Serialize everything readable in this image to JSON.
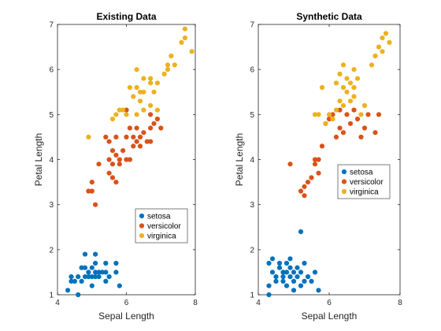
{
  "figure": {
    "background": "#ffffff"
  },
  "chart_data": [
    {
      "type": "scatter",
      "title": "Existing Data",
      "xlabel": "Sepal Length",
      "ylabel": "Petal Length",
      "xlim": [
        4,
        8
      ],
      "ylim": [
        1,
        7
      ],
      "xticks": [
        "4",
        "6",
        "8"
      ],
      "yticks": [
        "1",
        "2",
        "3",
        "4",
        "5",
        "6",
        "7"
      ],
      "grid": false,
      "legend_position": "lower-right",
      "series": [
        {
          "name": "setosa",
          "color": "#0072BD",
          "points": [
            [
              4.4,
              1.4
            ],
            [
              4.3,
              1.1
            ],
            [
              4.4,
              1.3
            ],
            [
              4.5,
              1.3
            ],
            [
              4.6,
              1.4
            ],
            [
              4.6,
              1.0
            ],
            [
              4.7,
              1.3
            ],
            [
              4.7,
              1.6
            ],
            [
              4.8,
              1.4
            ],
            [
              4.8,
              1.6
            ],
            [
              4.8,
              1.9
            ],
            [
              4.9,
              1.4
            ],
            [
              4.9,
              1.5
            ],
            [
              5.0,
              1.2
            ],
            [
              5.0,
              1.4
            ],
            [
              5.0,
              1.6
            ],
            [
              5.1,
              1.4
            ],
            [
              5.1,
              1.5
            ],
            [
              5.1,
              1.7
            ],
            [
              5.1,
              1.9
            ],
            [
              5.2,
              1.5
            ],
            [
              5.2,
              1.4
            ],
            [
              5.3,
              1.5
            ],
            [
              5.4,
              1.3
            ],
            [
              5.4,
              1.5
            ],
            [
              5.4,
              1.7
            ],
            [
              5.5,
              1.4
            ],
            [
              5.7,
              1.5
            ],
            [
              5.7,
              1.7
            ],
            [
              5.8,
              1.2
            ]
          ]
        },
        {
          "name": "versicolor",
          "color": "#D95319",
          "points": [
            [
              4.9,
              3.3
            ],
            [
              5.0,
              3.3
            ],
            [
              5.0,
              3.5
            ],
            [
              5.1,
              3.0
            ],
            [
              5.2,
              3.9
            ],
            [
              5.4,
              4.5
            ],
            [
              5.5,
              3.7
            ],
            [
              5.5,
              4.0
            ],
            [
              5.5,
              4.4
            ],
            [
              5.6,
              3.6
            ],
            [
              5.6,
              3.9
            ],
            [
              5.6,
              4.2
            ],
            [
              5.7,
              3.5
            ],
            [
              5.7,
              4.1
            ],
            [
              5.7,
              4.5
            ],
            [
              5.8,
              3.9
            ],
            [
              5.8,
              4.0
            ],
            [
              5.9,
              4.2
            ],
            [
              6.0,
              4.0
            ],
            [
              6.0,
              4.5
            ],
            [
              6.0,
              5.1
            ],
            [
              6.1,
              4.0
            ],
            [
              6.1,
              4.7
            ],
            [
              6.2,
              4.3
            ],
            [
              6.2,
              4.5
            ],
            [
              6.3,
              4.4
            ],
            [
              6.3,
              4.7
            ],
            [
              6.4,
              4.3
            ],
            [
              6.4,
              4.5
            ],
            [
              6.5,
              4.6
            ],
            [
              6.6,
              4.4
            ],
            [
              6.7,
              4.4
            ],
            [
              6.7,
              4.7
            ],
            [
              6.7,
              5.0
            ],
            [
              6.8,
              4.8
            ],
            [
              6.9,
              4.9
            ],
            [
              7.0,
              4.7
            ]
          ]
        },
        {
          "name": "virginica",
          "color": "#EDB120",
          "points": [
            [
              4.9,
              4.5
            ],
            [
              5.6,
              4.9
            ],
            [
              5.7,
              5.0
            ],
            [
              5.8,
              5.1
            ],
            [
              5.9,
              5.1
            ],
            [
              6.0,
              5.0
            ],
            [
              6.1,
              5.6
            ],
            [
              6.2,
              5.4
            ],
            [
              6.3,
              5.0
            ],
            [
              6.3,
              5.6
            ],
            [
              6.3,
              6.0
            ],
            [
              6.4,
              5.3
            ],
            [
              6.4,
              5.5
            ],
            [
              6.5,
              5.1
            ],
            [
              6.5,
              5.5
            ],
            [
              6.5,
              5.8
            ],
            [
              6.7,
              5.2
            ],
            [
              6.7,
              5.7
            ],
            [
              6.7,
              5.8
            ],
            [
              6.8,
              5.5
            ],
            [
              6.9,
              5.1
            ],
            [
              6.9,
              5.7
            ],
            [
              7.1,
              5.9
            ],
            [
              7.2,
              6.0
            ],
            [
              7.2,
              6.1
            ],
            [
              7.3,
              6.3
            ],
            [
              7.4,
              6.1
            ],
            [
              7.6,
              6.6
            ],
            [
              7.7,
              6.7
            ],
            [
              7.7,
              6.9
            ],
            [
              7.9,
              6.4
            ]
          ]
        }
      ]
    },
    {
      "type": "scatter",
      "title": "Synthetic Data",
      "xlabel": "Sepal Length",
      "ylabel": "Petal Length",
      "xlim": [
        4,
        8
      ],
      "ylim": [
        1,
        7
      ],
      "xticks": [
        "4",
        "6",
        "8"
      ],
      "yticks": [
        "1",
        "2",
        "3",
        "4",
        "5",
        "6",
        "7"
      ],
      "grid": false,
      "legend_position": "center-right",
      "series": [
        {
          "name": "setosa",
          "color": "#0072BD",
          "points": [
            [
              4.3,
              1.0
            ],
            [
              4.3,
              1.2
            ],
            [
              4.3,
              1.7
            ],
            [
              4.4,
              1.8
            ],
            [
              4.4,
              1.5
            ],
            [
              4.5,
              1.3
            ],
            [
              4.5,
              1.4
            ],
            [
              4.6,
              1.6
            ],
            [
              4.6,
              1.7
            ],
            [
              4.7,
              1.3
            ],
            [
              4.7,
              1.5
            ],
            [
              4.7,
              1.4
            ],
            [
              4.8,
              1.2
            ],
            [
              4.8,
              1.5
            ],
            [
              4.8,
              1.7
            ],
            [
              4.9,
              1.4
            ],
            [
              4.9,
              1.6
            ],
            [
              4.9,
              1.8
            ],
            [
              5.0,
              1.1
            ],
            [
              5.0,
              1.3
            ],
            [
              5.0,
              1.5
            ],
            [
              5.1,
              1.4
            ],
            [
              5.1,
              1.6
            ],
            [
              5.2,
              1.2
            ],
            [
              5.2,
              1.5
            ],
            [
              5.3,
              1.3
            ],
            [
              5.3,
              1.7
            ],
            [
              5.4,
              1.4
            ],
            [
              5.5,
              1.3
            ],
            [
              5.6,
              1.5
            ],
            [
              5.7,
              1.1
            ],
            [
              5.2,
              2.4
            ]
          ]
        },
        {
          "name": "versicolor",
          "color": "#D95319",
          "points": [
            [
              4.9,
              3.9
            ],
            [
              5.2,
              3.3
            ],
            [
              5.3,
              3.2
            ],
            [
              5.3,
              3.4
            ],
            [
              5.4,
              3.5
            ],
            [
              5.5,
              3.6
            ],
            [
              5.6,
              3.9
            ],
            [
              5.6,
              4.0
            ],
            [
              5.7,
              3.7
            ],
            [
              5.7,
              4.0
            ],
            [
              5.8,
              4.3
            ],
            [
              5.9,
              4.8
            ],
            [
              6.0,
              4.9
            ],
            [
              6.1,
              5.0
            ],
            [
              6.2,
              4.5
            ],
            [
              6.3,
              4.7
            ],
            [
              6.3,
              5.1
            ],
            [
              6.4,
              4.6
            ],
            [
              6.5,
              5.0
            ],
            [
              6.6,
              4.8
            ],
            [
              6.7,
              5.1
            ],
            [
              6.8,
              4.9
            ],
            [
              6.9,
              4.5
            ],
            [
              7.0,
              4.7
            ],
            [
              7.1,
              5.0
            ],
            [
              7.3,
              4.6
            ],
            [
              7.4,
              5.0
            ]
          ]
        },
        {
          "name": "virginica",
          "color": "#EDB120",
          "points": [
            [
              5.6,
              5.0
            ],
            [
              5.7,
              5.0
            ],
            [
              5.8,
              5.6
            ],
            [
              5.9,
              4.8
            ],
            [
              6.0,
              5.0
            ],
            [
              6.1,
              4.9
            ],
            [
              6.2,
              5.1
            ],
            [
              6.2,
              5.7
            ],
            [
              6.3,
              5.3
            ],
            [
              6.3,
              5.9
            ],
            [
              6.4,
              5.2
            ],
            [
              6.4,
              5.6
            ],
            [
              6.4,
              6.1
            ],
            [
              6.5,
              5.5
            ],
            [
              6.5,
              5.8
            ],
            [
              6.6,
              5.3
            ],
            [
              6.6,
              5.7
            ],
            [
              6.7,
              5.4
            ],
            [
              6.7,
              5.6
            ],
            [
              6.7,
              6.0
            ],
            [
              6.8,
              5.8
            ],
            [
              6.9,
              5.0
            ],
            [
              7.0,
              5.2
            ],
            [
              7.2,
              6.1
            ],
            [
              7.3,
              6.3
            ],
            [
              7.4,
              6.5
            ],
            [
              7.5,
              6.4
            ],
            [
              7.5,
              6.7
            ],
            [
              7.6,
              6.8
            ],
            [
              7.7,
              6.6
            ]
          ]
        }
      ]
    }
  ]
}
